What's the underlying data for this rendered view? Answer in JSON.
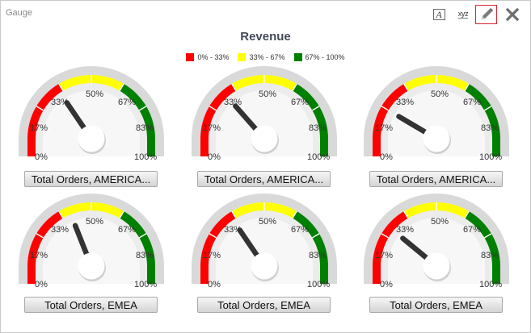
{
  "panel": {
    "title": "Gauge"
  },
  "toolbar": {
    "text_icon": "A",
    "xyz_icon": "xyz"
  },
  "chart_data": {
    "type": "gauge",
    "title": "Revenue",
    "legend": [
      {
        "label": "0% - 33%",
        "color": "#ff0000"
      },
      {
        "label": "33% - 67%",
        "color": "#ffff00"
      },
      {
        "label": "67% - 100%",
        "color": "#008000"
      }
    ],
    "ticks": [
      "0%",
      "17%",
      "33%",
      "50%",
      "67%",
      "83%",
      "100%"
    ],
    "gauges": [
      {
        "label": "Total Orders, AMERICA...",
        "value": 31
      },
      {
        "label": "Total Orders, AMERICA...",
        "value": 27
      },
      {
        "label": "Total Orders, AMERICA...",
        "value": 17
      },
      {
        "label": "Total Orders, EMEA",
        "value": 38
      },
      {
        "label": "Total Orders, EMEA",
        "value": 31
      },
      {
        "label": "Total Orders, EMEA",
        "value": 22
      }
    ]
  }
}
